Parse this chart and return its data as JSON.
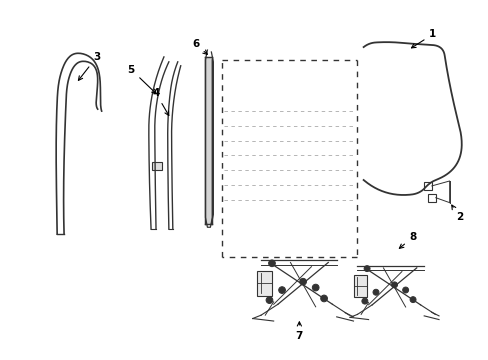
{
  "background_color": "#ffffff",
  "line_color": "#333333",
  "figure_width": 4.89,
  "figure_height": 3.6,
  "dpi": 100
}
